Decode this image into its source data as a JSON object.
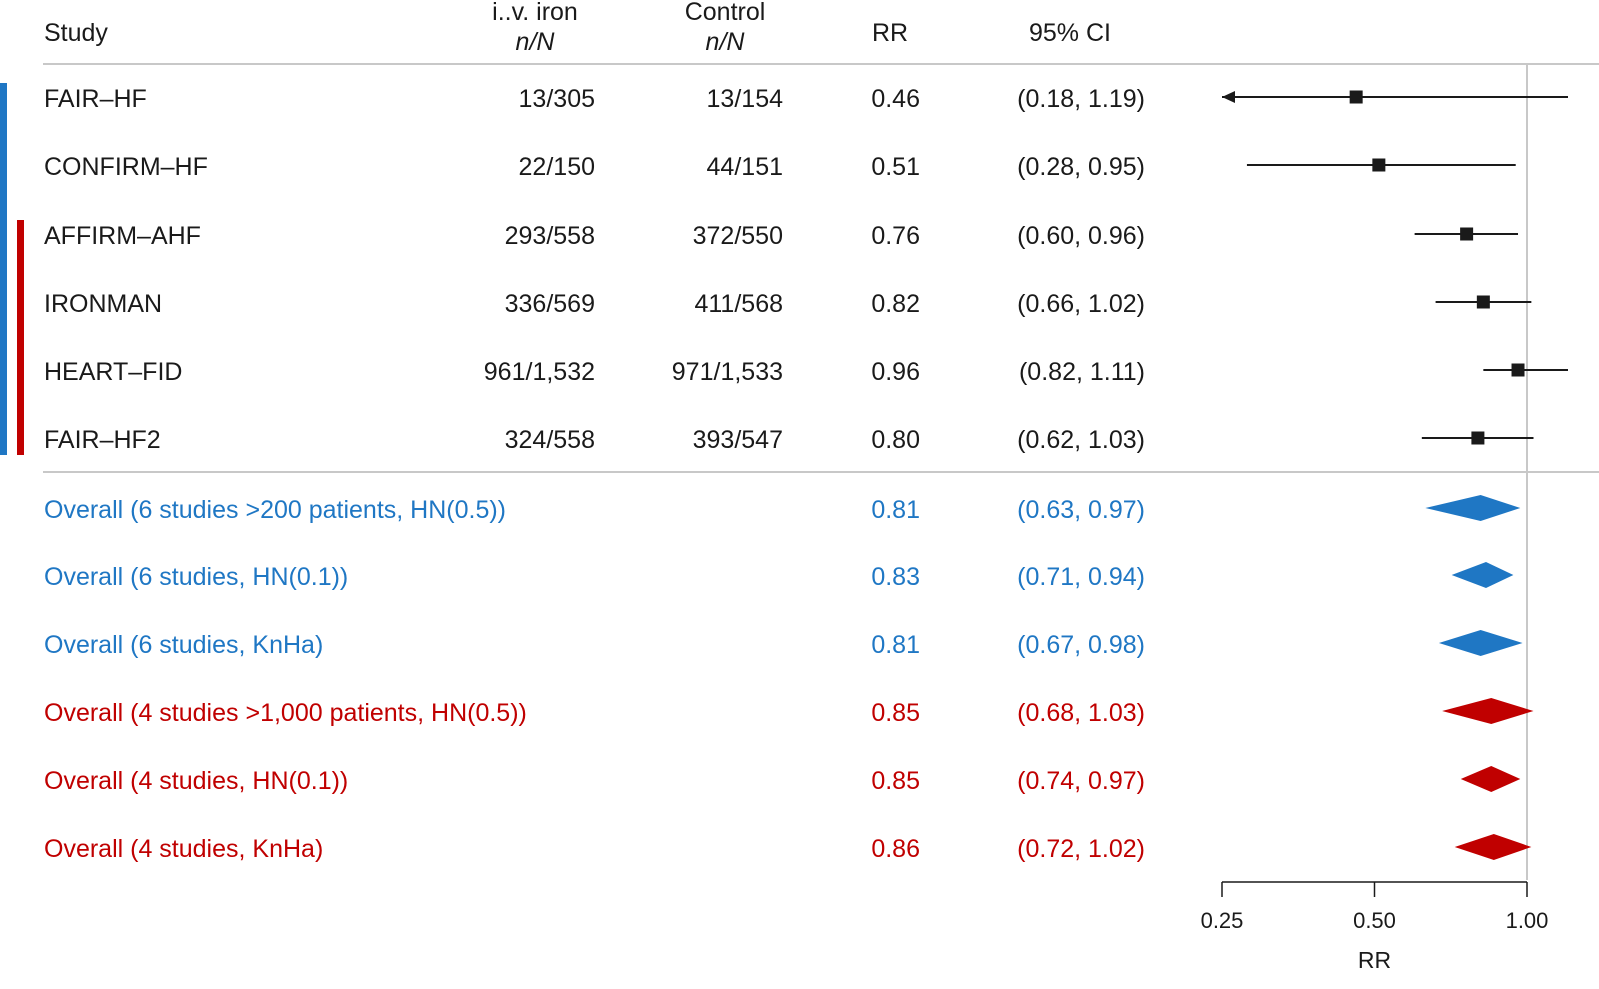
{
  "columns": {
    "study": "Study",
    "iv_iron_line1": "i..v. iron",
    "iv_iron_line2": "n/N",
    "control_line1": "Control",
    "control_line2": "n/N",
    "rr": "RR",
    "ci": "95% CI"
  },
  "colors": {
    "blue": "#1f77c4",
    "red": "#c00000",
    "black": "#1a1a1a"
  },
  "chart_data": {
    "type": "forest",
    "xlabel": "RR",
    "xscale": "log2",
    "xlim": [
      0.25,
      1.1
    ],
    "xticks": [
      "0.25",
      "0.50",
      "1.00"
    ],
    "reference_line": 1.0,
    "studies": [
      {
        "name": "FAIR–HF",
        "iv": "13/305",
        "control": "13/154",
        "rr": "0.46",
        "ci": "(0.18, 1.19)",
        "est": 0.46,
        "lo": 0.18,
        "hi": 1.19
      },
      {
        "name": "CONFIRM–HF",
        "iv": "22/150",
        "control": "44/151",
        "rr": "0.51",
        "ci": "(0.28, 0.95)",
        "est": 0.51,
        "lo": 0.28,
        "hi": 0.95
      },
      {
        "name": "AFFIRM–AHF",
        "iv": "293/558",
        "control": "372/550",
        "rr": "0.76",
        "ci": "(0.60, 0.96)",
        "est": 0.76,
        "lo": 0.6,
        "hi": 0.96
      },
      {
        "name": "IRONMAN",
        "iv": "336/569",
        "control": "411/568",
        "rr": "0.82",
        "ci": "(0.66, 1.02)",
        "est": 0.82,
        "lo": 0.66,
        "hi": 1.02
      },
      {
        "name": "HEART–FID",
        "iv": "961/1,532",
        "control": "971/1,533",
        "rr": "0.96",
        "ci": "(0.82, 1.11)",
        "est": 0.96,
        "lo": 0.82,
        "hi": 1.11
      },
      {
        "name": "FAIR–HF2",
        "iv": "324/558",
        "control": "393/547",
        "rr": "0.80",
        "ci": "(0.62, 1.03)",
        "est": 0.8,
        "lo": 0.62,
        "hi": 1.03
      }
    ],
    "overall": [
      {
        "label": "Overall (6 studies >200 patients, HN(0.5))",
        "rr": "0.81",
        "ci": "(0.63, 0.97)",
        "est": 0.81,
        "lo": 0.63,
        "hi": 0.97,
        "group": "blue"
      },
      {
        "label": "Overall (6 studies, HN(0.1))",
        "rr": "0.83",
        "ci": "(0.71, 0.94)",
        "est": 0.83,
        "lo": 0.71,
        "hi": 0.94,
        "group": "blue"
      },
      {
        "label": "Overall (6 studies, KnHa)",
        "rr": "0.81",
        "ci": "(0.67, 0.98)",
        "est": 0.81,
        "lo": 0.67,
        "hi": 0.98,
        "group": "blue"
      },
      {
        "label": "Overall (4 studies >1,000 patients, HN(0.5))",
        "rr": "0.85",
        "ci": "(0.68, 1.03)",
        "est": 0.85,
        "lo": 0.68,
        "hi": 1.03,
        "group": "red"
      },
      {
        "label": "Overall (4 studies, HN(0.1))",
        "rr": "0.85",
        "ci": "(0.74, 0.97)",
        "est": 0.85,
        "lo": 0.74,
        "hi": 0.97,
        "group": "red"
      },
      {
        "label": "Overall (4 studies, KnHa)",
        "rr": "0.86",
        "ci": "(0.72, 1.02)",
        "est": 0.86,
        "lo": 0.72,
        "hi": 1.02,
        "group": "red"
      }
    ]
  }
}
